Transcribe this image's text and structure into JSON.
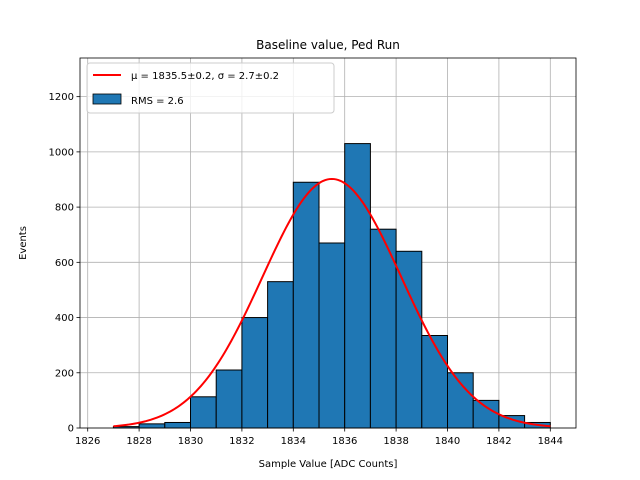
{
  "chart_data": {
    "type": "bar",
    "title": "Baseline value, Ped Run",
    "xlabel": "Sample Value [ADC Counts]",
    "ylabel": "Events",
    "xlim": [
      1825.7,
      1845.0
    ],
    "ylim": [
      0,
      1340
    ],
    "xticks": [
      1826,
      1828,
      1830,
      1832,
      1834,
      1836,
      1838,
      1840,
      1842,
      1844
    ],
    "yticks": [
      0,
      200,
      400,
      600,
      800,
      1000,
      1200
    ],
    "grid": true,
    "bin_edges": [
      1827.0,
      1828.0,
      1829.0,
      1830.0,
      1831.0,
      1832.0,
      1833.0,
      1834.0,
      1835.0,
      1836.0,
      1837.0,
      1838.0,
      1839.0,
      1840.0,
      1841.0,
      1842.0,
      1843.0,
      1844.0
    ],
    "counts": [
      5,
      15,
      20,
      113,
      210,
      400,
      530,
      890,
      670,
      1030,
      720,
      640,
      335,
      200,
      100,
      45,
      20
    ],
    "bar_color": "#1f77b4",
    "bar_edge_color": "#000000",
    "fit": {
      "name": "gaussian",
      "color": "#ff0000",
      "mu": 1835.5,
      "sigma": 2.7,
      "amplitude": 902,
      "x_range": [
        1827.0,
        1844.0
      ]
    },
    "legend": {
      "position": "upper-left",
      "entries": [
        {
          "label": "μ = 1835.5±0.2, σ = 2.7±0.2",
          "kind": "line",
          "color": "#ff0000"
        },
        {
          "label": "RMS = 2.6",
          "kind": "patch",
          "color": "#1f77b4"
        }
      ]
    }
  }
}
